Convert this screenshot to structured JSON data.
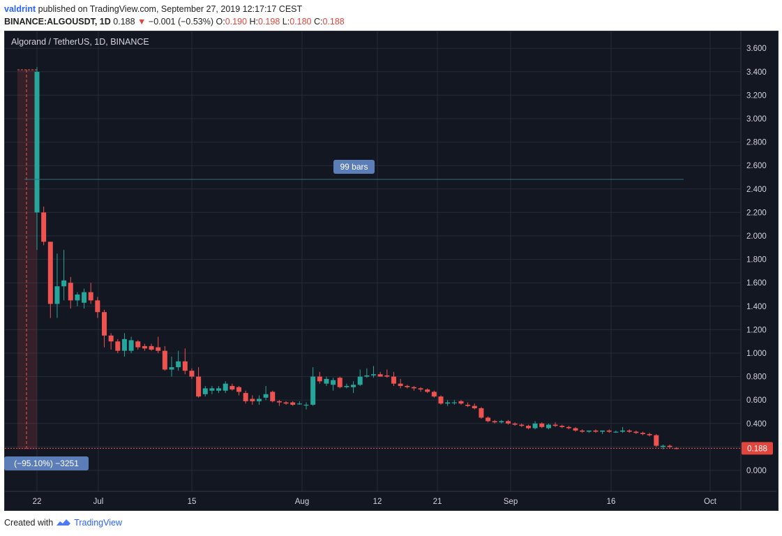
{
  "header": {
    "author": "valdrint",
    "published_text": "published on TradingView.com, September 27, 2019 12:17:17 CEST",
    "symbol": "BINANCE:ALGOUSDT, 1D",
    "last": "0.188",
    "change_arrow": "▼",
    "change": "−0.001 (−0.53%)",
    "o_label": "O:",
    "o": "0.190",
    "h_label": "H:",
    "h": "0.198",
    "l_label": "L:",
    "l": "0.180",
    "c_label": "C:",
    "c": "0.188"
  },
  "pane_title": "Algorand / TetherUS, 1D, BINANCE",
  "annotations": {
    "range_label": "99 bars",
    "measure_label": "(−95.10%) −3251",
    "price_badge": "0.188"
  },
  "footer": {
    "created_with": "Created with",
    "brand": "TradingView"
  },
  "colors": {
    "background": "#131722",
    "grid": "#262b38",
    "up": "#26a69a",
    "down": "#ef5350",
    "axis_text": "#d1d4dc",
    "badge": "#5b7db8"
  },
  "chart_data": {
    "type": "candlestick",
    "title": "Algorand / TetherUS, 1D, BINANCE",
    "ylim": [
      -0.1,
      3.7
    ],
    "y_ticks": [
      "3.600",
      "3.400",
      "3.200",
      "3.000",
      "2.800",
      "2.600",
      "2.400",
      "2.200",
      "2.000",
      "1.800",
      "1.600",
      "1.400",
      "1.200",
      "1.000",
      "0.800",
      "0.600",
      "0.400",
      "0.200",
      "0.000"
    ],
    "x_ticks": [
      "22",
      "Jul",
      "15",
      "Aug",
      "12",
      "21",
      "Sep",
      "16",
      "Oct"
    ],
    "grid": true,
    "last_price": 0.188,
    "candles": [
      {
        "o": 2.2,
        "h": 3.44,
        "l": 1.88,
        "c": 3.4
      },
      {
        "o": 2.2,
        "h": 2.25,
        "l": 1.92,
        "c": 1.95
      },
      {
        "o": 1.95,
        "h": 1.95,
        "l": 1.3,
        "c": 1.42
      },
      {
        "o": 1.42,
        "h": 1.85,
        "l": 1.3,
        "c": 1.57
      },
      {
        "o": 1.57,
        "h": 1.88,
        "l": 1.45,
        "c": 1.62
      },
      {
        "o": 1.6,
        "h": 1.65,
        "l": 1.38,
        "c": 1.45
      },
      {
        "o": 1.45,
        "h": 1.52,
        "l": 1.4,
        "c": 1.5
      },
      {
        "o": 1.43,
        "h": 1.55,
        "l": 1.38,
        "c": 1.52
      },
      {
        "o": 1.52,
        "h": 1.6,
        "l": 1.42,
        "c": 1.45
      },
      {
        "o": 1.45,
        "h": 1.48,
        "l": 1.3,
        "c": 1.35
      },
      {
        "o": 1.35,
        "h": 1.37,
        "l": 1.05,
        "c": 1.15
      },
      {
        "o": 1.15,
        "h": 1.17,
        "l": 1.03,
        "c": 1.1
      },
      {
        "o": 1.1,
        "h": 1.12,
        "l": 1.0,
        "c": 1.02
      },
      {
        "o": 1.02,
        "h": 1.17,
        "l": 0.97,
        "c": 1.12
      },
      {
        "o": 1.02,
        "h": 1.14,
        "l": 1.0,
        "c": 1.11
      },
      {
        "o": 1.1,
        "h": 1.11,
        "l": 1.03,
        "c": 1.05
      },
      {
        "o": 1.06,
        "h": 1.08,
        "l": 1.02,
        "c": 1.04
      },
      {
        "o": 1.06,
        "h": 1.08,
        "l": 1.02,
        "c": 1.03
      },
      {
        "o": 1.05,
        "h": 1.14,
        "l": 1.0,
        "c": 1.02
      },
      {
        "o": 1.02,
        "h": 1.06,
        "l": 0.85,
        "c": 0.86
      },
      {
        "o": 0.86,
        "h": 0.97,
        "l": 0.8,
        "c": 0.88
      },
      {
        "o": 0.88,
        "h": 1.02,
        "l": 0.85,
        "c": 0.93
      },
      {
        "o": 0.93,
        "h": 1.04,
        "l": 0.82,
        "c": 0.85
      },
      {
        "o": 0.85,
        "h": 0.87,
        "l": 0.78,
        "c": 0.8
      },
      {
        "o": 0.8,
        "h": 0.88,
        "l": 0.62,
        "c": 0.63
      },
      {
        "o": 0.65,
        "h": 0.72,
        "l": 0.63,
        "c": 0.7
      },
      {
        "o": 0.68,
        "h": 0.72,
        "l": 0.65,
        "c": 0.7
      },
      {
        "o": 0.68,
        "h": 0.72,
        "l": 0.66,
        "c": 0.7
      },
      {
        "o": 0.68,
        "h": 0.76,
        "l": 0.66,
        "c": 0.74
      },
      {
        "o": 0.72,
        "h": 0.74,
        "l": 0.68,
        "c": 0.69
      },
      {
        "o": 0.71,
        "h": 0.72,
        "l": 0.64,
        "c": 0.67
      },
      {
        "o": 0.66,
        "h": 0.68,
        "l": 0.57,
        "c": 0.59
      },
      {
        "o": 0.61,
        "h": 0.64,
        "l": 0.56,
        "c": 0.59
      },
      {
        "o": 0.59,
        "h": 0.64,
        "l": 0.56,
        "c": 0.61
      },
      {
        "o": 0.62,
        "h": 0.72,
        "l": 0.6,
        "c": 0.65
      },
      {
        "o": 0.67,
        "h": 0.68,
        "l": 0.58,
        "c": 0.59
      },
      {
        "o": 0.59,
        "h": 0.6,
        "l": 0.55,
        "c": 0.58
      },
      {
        "o": 0.58,
        "h": 0.59,
        "l": 0.56,
        "c": 0.57
      },
      {
        "o": 0.58,
        "h": 0.59,
        "l": 0.55,
        "c": 0.56
      },
      {
        "o": 0.57,
        "h": 0.59,
        "l": 0.56,
        "c": 0.57
      },
      {
        "o": 0.56,
        "h": 0.58,
        "l": 0.52,
        "c": 0.56
      },
      {
        "o": 0.56,
        "h": 0.88,
        "l": 0.55,
        "c": 0.8
      },
      {
        "o": 0.8,
        "h": 0.84,
        "l": 0.74,
        "c": 0.76
      },
      {
        "o": 0.74,
        "h": 0.8,
        "l": 0.72,
        "c": 0.78
      },
      {
        "o": 0.73,
        "h": 0.79,
        "l": 0.68,
        "c": 0.77
      },
      {
        "o": 0.79,
        "h": 0.8,
        "l": 0.7,
        "c": 0.71
      },
      {
        "o": 0.71,
        "h": 0.74,
        "l": 0.7,
        "c": 0.72
      },
      {
        "o": 0.71,
        "h": 0.76,
        "l": 0.66,
        "c": 0.73
      },
      {
        "o": 0.73,
        "h": 0.86,
        "l": 0.72,
        "c": 0.8
      },
      {
        "o": 0.8,
        "h": 0.87,
        "l": 0.79,
        "c": 0.81
      },
      {
        "o": 0.81,
        "h": 0.89,
        "l": 0.79,
        "c": 0.82
      },
      {
        "o": 0.82,
        "h": 0.84,
        "l": 0.8,
        "c": 0.8
      },
      {
        "o": 0.81,
        "h": 0.86,
        "l": 0.79,
        "c": 0.8
      },
      {
        "o": 0.8,
        "h": 0.84,
        "l": 0.72,
        "c": 0.74
      },
      {
        "o": 0.74,
        "h": 0.78,
        "l": 0.7,
        "c": 0.72
      },
      {
        "o": 0.72,
        "h": 0.73,
        "l": 0.7,
        "c": 0.71
      },
      {
        "o": 0.71,
        "h": 0.72,
        "l": 0.68,
        "c": 0.7
      },
      {
        "o": 0.7,
        "h": 0.71,
        "l": 0.67,
        "c": 0.69
      },
      {
        "o": 0.69,
        "h": 0.7,
        "l": 0.66,
        "c": 0.67
      },
      {
        "o": 0.67,
        "h": 0.68,
        "l": 0.62,
        "c": 0.63
      },
      {
        "o": 0.63,
        "h": 0.64,
        "l": 0.56,
        "c": 0.57
      },
      {
        "o": 0.57,
        "h": 0.6,
        "l": 0.55,
        "c": 0.58
      },
      {
        "o": 0.58,
        "h": 0.6,
        "l": 0.56,
        "c": 0.58
      },
      {
        "o": 0.59,
        "h": 0.6,
        "l": 0.56,
        "c": 0.57
      },
      {
        "o": 0.56,
        "h": 0.58,
        "l": 0.54,
        "c": 0.55
      },
      {
        "o": 0.55,
        "h": 0.57,
        "l": 0.52,
        "c": 0.53
      },
      {
        "o": 0.53,
        "h": 0.54,
        "l": 0.44,
        "c": 0.45
      },
      {
        "o": 0.45,
        "h": 0.46,
        "l": 0.41,
        "c": 0.42
      },
      {
        "o": 0.42,
        "h": 0.43,
        "l": 0.4,
        "c": 0.41
      },
      {
        "o": 0.41,
        "h": 0.43,
        "l": 0.4,
        "c": 0.42
      },
      {
        "o": 0.42,
        "h": 0.43,
        "l": 0.39,
        "c": 0.4
      },
      {
        "o": 0.4,
        "h": 0.41,
        "l": 0.38,
        "c": 0.39
      },
      {
        "o": 0.39,
        "h": 0.4,
        "l": 0.37,
        "c": 0.38
      },
      {
        "o": 0.38,
        "h": 0.39,
        "l": 0.35,
        "c": 0.36
      },
      {
        "o": 0.36,
        "h": 0.42,
        "l": 0.35,
        "c": 0.4
      },
      {
        "o": 0.4,
        "h": 0.41,
        "l": 0.36,
        "c": 0.37
      },
      {
        "o": 0.36,
        "h": 0.4,
        "l": 0.35,
        "c": 0.39
      },
      {
        "o": 0.39,
        "h": 0.41,
        "l": 0.37,
        "c": 0.38
      },
      {
        "o": 0.38,
        "h": 0.39,
        "l": 0.36,
        "c": 0.37
      },
      {
        "o": 0.37,
        "h": 0.38,
        "l": 0.35,
        "c": 0.36
      },
      {
        "o": 0.36,
        "h": 0.37,
        "l": 0.33,
        "c": 0.34
      },
      {
        "o": 0.34,
        "h": 0.35,
        "l": 0.32,
        "c": 0.33
      },
      {
        "o": 0.33,
        "h": 0.34,
        "l": 0.32,
        "c": 0.34
      },
      {
        "o": 0.34,
        "h": 0.35,
        "l": 0.32,
        "c": 0.33
      },
      {
        "o": 0.33,
        "h": 0.34,
        "l": 0.31,
        "c": 0.34
      },
      {
        "o": 0.34,
        "h": 0.35,
        "l": 0.32,
        "c": 0.33
      },
      {
        "o": 0.33,
        "h": 0.34,
        "l": 0.32,
        "c": 0.33
      },
      {
        "o": 0.33,
        "h": 0.37,
        "l": 0.32,
        "c": 0.34
      },
      {
        "o": 0.34,
        "h": 0.35,
        "l": 0.32,
        "c": 0.33
      },
      {
        "o": 0.33,
        "h": 0.34,
        "l": 0.31,
        "c": 0.32
      },
      {
        "o": 0.32,
        "h": 0.33,
        "l": 0.3,
        "c": 0.31
      },
      {
        "o": 0.31,
        "h": 0.32,
        "l": 0.29,
        "c": 0.3
      },
      {
        "o": 0.3,
        "h": 0.31,
        "l": 0.2,
        "c": 0.21
      },
      {
        "o": 0.2,
        "h": 0.22,
        "l": 0.18,
        "c": 0.21
      },
      {
        "o": 0.21,
        "h": 0.22,
        "l": 0.19,
        "c": 0.2
      },
      {
        "o": 0.19,
        "h": 0.198,
        "l": 0.18,
        "c": 0.188
      }
    ]
  }
}
